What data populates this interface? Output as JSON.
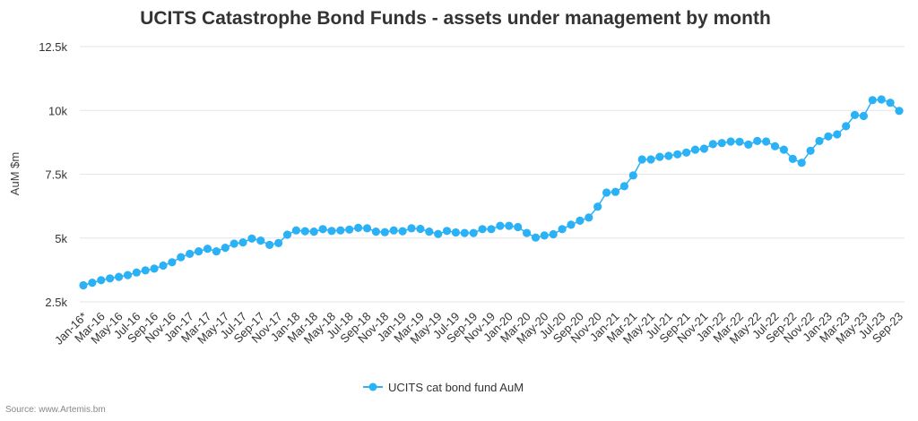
{
  "source_text": "Source: www.Artemis.bm",
  "colors": {
    "series": "#2bb1f5",
    "grid": "#e6e6e6",
    "text": "#333333"
  },
  "chart_data": {
    "type": "line",
    "title": "UCITS Catastrophe Bond Funds - assets under management by month",
    "xlabel": "",
    "ylabel": "AuM $m",
    "ylim": [
      2500,
      12500
    ],
    "yticks": [
      2500,
      5000,
      7500,
      10000,
      12500
    ],
    "ytick_labels": [
      "2.5k",
      "5k",
      "7.5k",
      "10k",
      "12.5k"
    ],
    "grid": "horizontal",
    "legend_position": "bottom-center",
    "categories": [
      "Jan-16*",
      "Feb-16",
      "Mar-16",
      "Apr-16",
      "May-16",
      "Jun-16",
      "Jul-16",
      "Aug-16",
      "Sep-16",
      "Oct-16",
      "Nov-16",
      "Dec-16",
      "Jan-17",
      "Feb-17",
      "Mar-17",
      "Apr-17",
      "May-17",
      "Jun-17",
      "Jul-17",
      "Aug-17",
      "Sep-17",
      "Oct-17",
      "Nov-17",
      "Dec-17",
      "Jan-18",
      "Feb-18",
      "Mar-18",
      "Apr-18",
      "May-18",
      "Jun-18",
      "Jul-18",
      "Aug-18",
      "Sep-18",
      "Oct-18",
      "Nov-18",
      "Dec-18",
      "Jan-19",
      "Feb-19",
      "Mar-19",
      "Apr-19",
      "May-19",
      "Jun-19",
      "Jul-19",
      "Aug-19",
      "Sep-19",
      "Oct-19",
      "Nov-19",
      "Dec-19",
      "Jan-20",
      "Feb-20",
      "Mar-20",
      "Apr-20",
      "May-20",
      "Jun-20",
      "Jul-20",
      "Aug-20",
      "Sep-20",
      "Oct-20",
      "Nov-20",
      "Dec-20",
      "Jan-21",
      "Feb-21",
      "Mar-21",
      "Apr-21",
      "May-21",
      "Jun-21",
      "Jul-21",
      "Aug-21",
      "Sep-21",
      "Oct-21",
      "Nov-21",
      "Dec-21",
      "Jan-22",
      "Feb-22",
      "Mar-22",
      "Apr-22",
      "May-22",
      "Jun-22",
      "Jul-22",
      "Aug-22",
      "Sep-22",
      "Oct-22",
      "Nov-22",
      "Dec-22",
      "Jan-23",
      "Feb-23",
      "Mar-23",
      "Apr-23",
      "May-23",
      "Jun-23",
      "Jul-23",
      "Aug-23",
      "Sep-23"
    ],
    "tick_labels": [
      "Jan-16*",
      "Mar-16",
      "May-16",
      "Jul-16",
      "Sep-16",
      "Nov-16",
      "Jan-17",
      "Mar-17",
      "May-17",
      "Jul-17",
      "Sep-17",
      "Nov-17",
      "Jan-18",
      "Mar-18",
      "May-18",
      "Jul-18",
      "Sep-18",
      "Nov-18",
      "Jan-19",
      "Mar-19",
      "May-19",
      "Jul-19",
      "Sep-19",
      "Nov-19",
      "Jan-20",
      "Mar-20",
      "May-20",
      "Jul-20",
      "Sep-20",
      "Nov-20",
      "Jan-21",
      "Mar-21",
      "May-21",
      "Jul-21",
      "Sep-21",
      "Nov-21",
      "Jan-22",
      "Mar-22",
      "May-22",
      "Jul-22",
      "Sep-22",
      "Nov-22",
      "Jan-23",
      "Mar-23",
      "May-23",
      "Jul-23",
      "Sep-23"
    ],
    "series": [
      {
        "name": "UCITS cat bond fund AuM",
        "values": [
          3150,
          3250,
          3350,
          3420,
          3480,
          3550,
          3650,
          3730,
          3800,
          3920,
          4050,
          4250,
          4380,
          4480,
          4580,
          4480,
          4620,
          4780,
          4830,
          4980,
          4900,
          4730,
          4800,
          5130,
          5300,
          5270,
          5250,
          5350,
          5280,
          5300,
          5330,
          5400,
          5380,
          5250,
          5230,
          5300,
          5270,
          5380,
          5360,
          5250,
          5160,
          5280,
          5220,
          5200,
          5200,
          5350,
          5350,
          5480,
          5480,
          5430,
          5200,
          5020,
          5100,
          5150,
          5350,
          5520,
          5680,
          5800,
          6230,
          6780,
          6810,
          7030,
          7450,
          8080,
          8080,
          8180,
          8220,
          8280,
          8350,
          8460,
          8500,
          8680,
          8720,
          8780,
          8770,
          8660,
          8800,
          8780,
          8600,
          8460,
          8100,
          7950,
          8420,
          8800,
          8980,
          9060,
          9380,
          9820,
          9780,
          10400,
          10430,
          10300,
          9980
        ]
      }
    ]
  }
}
